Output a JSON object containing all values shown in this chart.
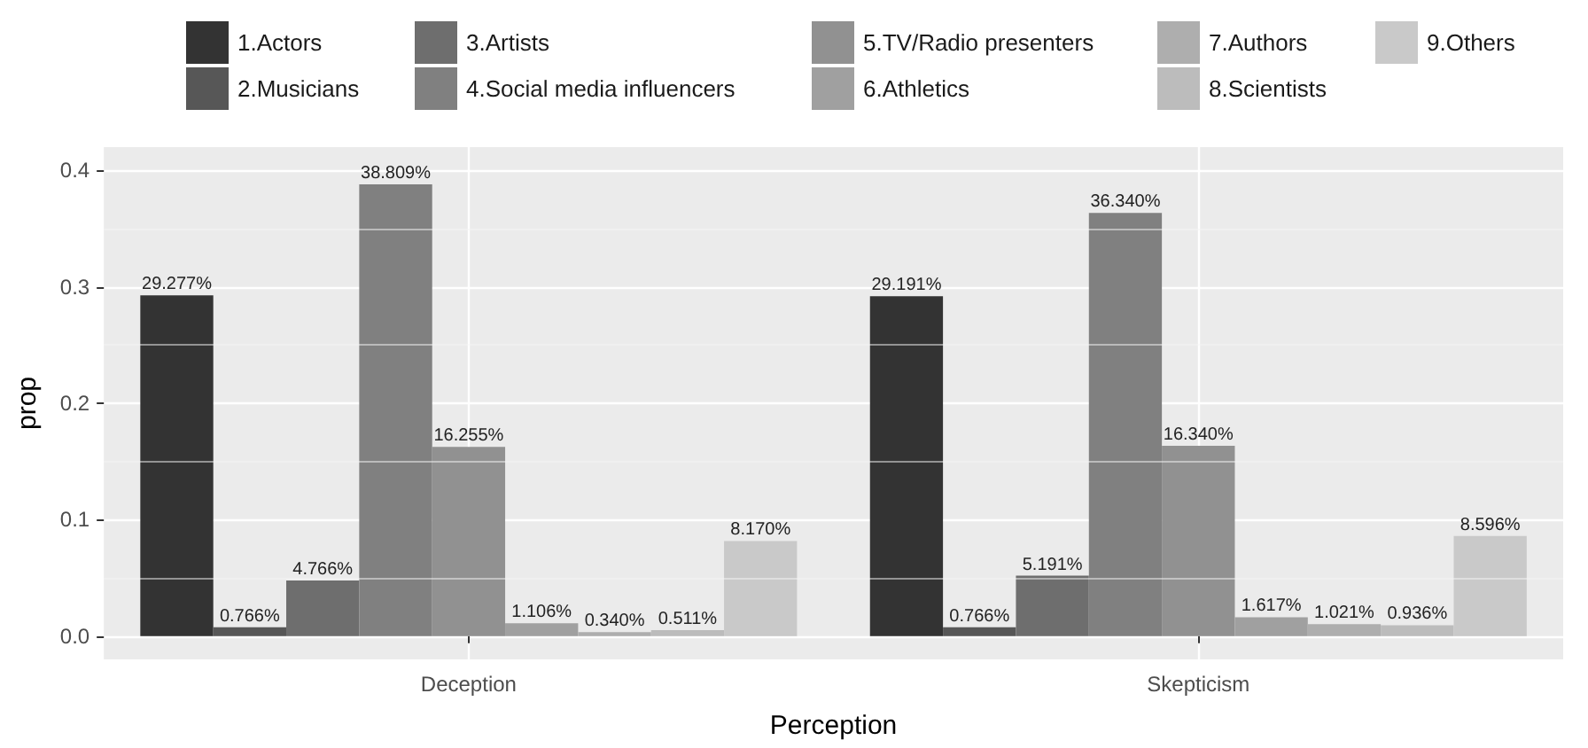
{
  "chart_data": {
    "type": "bar",
    "xlabel": "Perception",
    "ylabel": "prop",
    "categories": [
      "Deception",
      "Skepticism"
    ],
    "ylim": [
      -0.02,
      0.42
    ],
    "yticks": [
      {
        "value": 0,
        "label": "0.0"
      },
      {
        "value": 0.1,
        "label": "0.1"
      },
      {
        "value": 0.2,
        "label": "0.2"
      },
      {
        "value": 0.3,
        "label": "0.3"
      },
      {
        "value": 0.4,
        "label": "0.4"
      }
    ],
    "grid": true,
    "legend": "top",
    "series": [
      {
        "name": "1.Actors",
        "color": "#333333",
        "values": [
          0.29277,
          0.29191
        ],
        "value_labels": [
          "29.277%",
          "29.191%"
        ]
      },
      {
        "name": "2.Musicians",
        "color": "#575757",
        "values": [
          0.00766,
          0.00766
        ],
        "value_labels": [
          "0.766%",
          "0.766%"
        ]
      },
      {
        "name": "3.Artists",
        "color": "#6e6e6e",
        "values": [
          0.04766,
          0.05191
        ],
        "value_labels": [
          "4.766%",
          "5.191%"
        ]
      },
      {
        "name": "4.Social media influencers",
        "color": "#808080",
        "values": [
          0.38809,
          0.3634
        ],
        "value_labels": [
          "38.809%",
          "36.340%"
        ]
      },
      {
        "name": "5.TV/Radio presenters",
        "color": "#919191",
        "values": [
          0.16255,
          0.1634
        ],
        "value_labels": [
          "16.255%",
          "16.340%"
        ]
      },
      {
        "name": "6.Athletics",
        "color": "#a0a0a0",
        "values": [
          0.01106,
          0.01617
        ],
        "value_labels": [
          "1.106%",
          "1.617%"
        ]
      },
      {
        "name": "7.Authors",
        "color": "#aeaeae",
        "values": [
          0.0034,
          0.01021
        ],
        "value_labels": [
          "0.340%",
          "1.021%"
        ]
      },
      {
        "name": "8.Scientists",
        "color": "#bcbcbc",
        "values": [
          0.00511,
          0.00936
        ],
        "value_labels": [
          "0.511%",
          "0.936%"
        ]
      },
      {
        "name": "9.Others",
        "color": "#c9c9c9",
        "values": [
          0.0817,
          0.08596
        ],
        "value_labels": [
          "8.170%",
          "8.596%"
        ]
      }
    ]
  }
}
